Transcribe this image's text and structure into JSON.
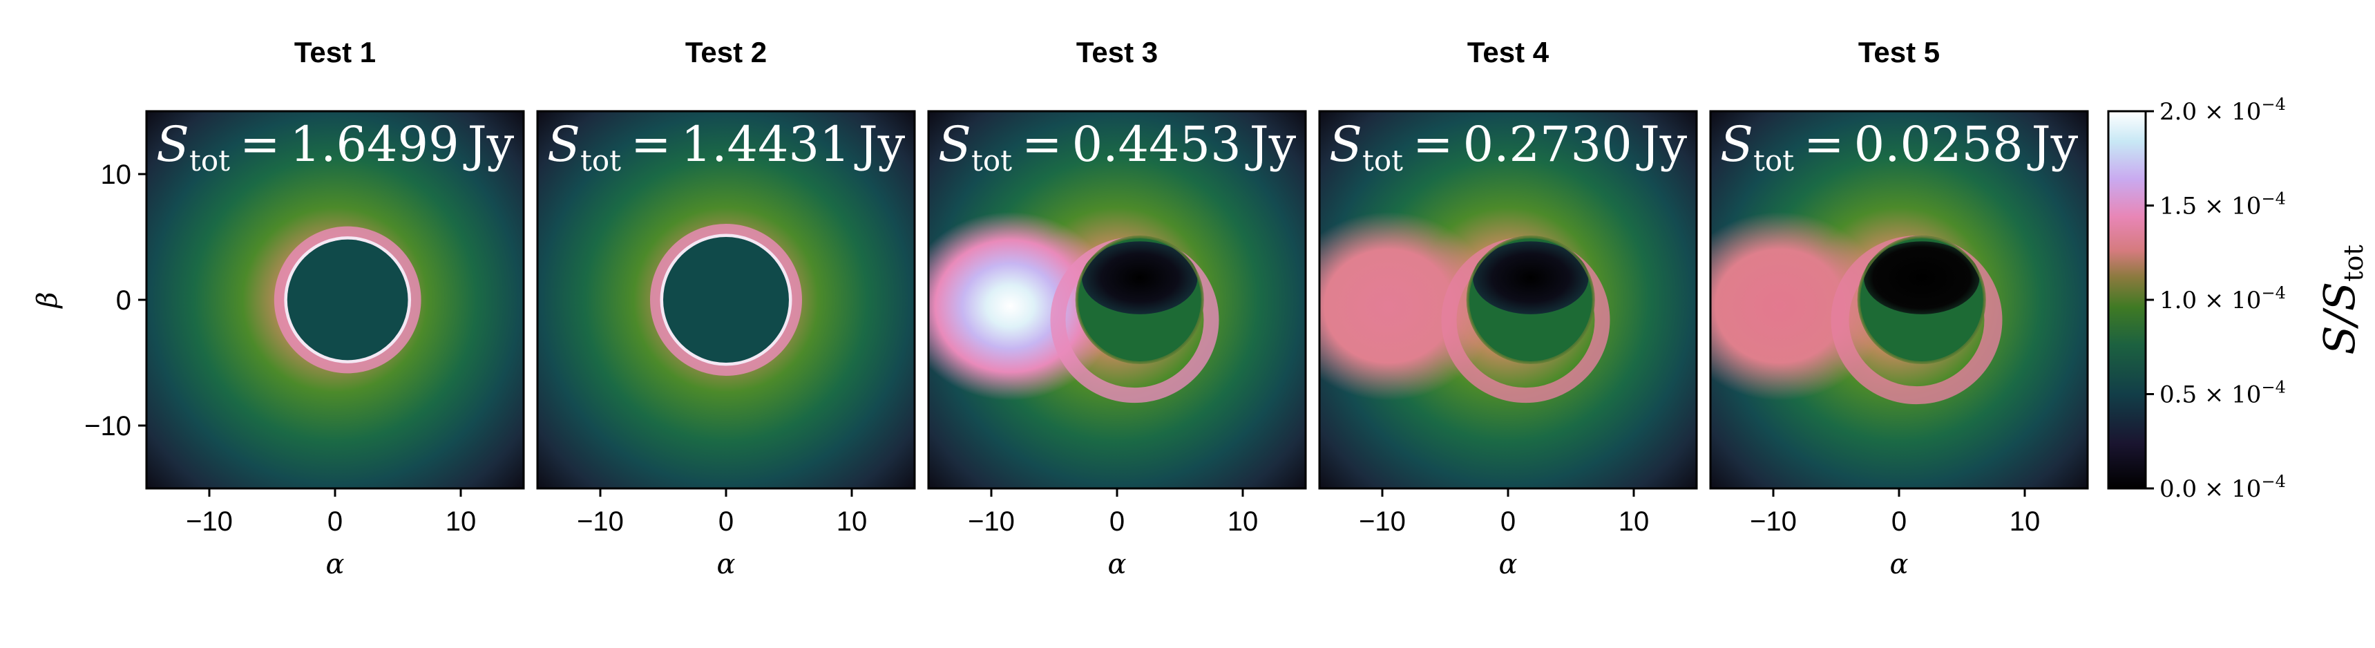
{
  "chart_data": {
    "type": "heatmap",
    "colormap": "cubehelix",
    "x_range": [
      -15,
      15
    ],
    "y_range": [
      -15,
      15
    ],
    "xlabel": "α",
    "ylabel": "β",
    "x_ticks": [
      -10,
      0,
      10
    ],
    "y_ticks": [
      -10,
      0,
      10
    ],
    "x_tick_labels": [
      "−10",
      "0",
      "10"
    ],
    "y_tick_labels": [
      "−10",
      "0",
      "10"
    ],
    "panels": [
      {
        "title": "Test 1",
        "stot_value": "1.6499",
        "stot_unit": "Jy",
        "shadow_center": [
          1.0,
          0.0
        ],
        "shadow_radius": 4.8,
        "style": "symmetric"
      },
      {
        "title": "Test 2",
        "stot_value": "1.4431",
        "stot_unit": "Jy",
        "shadow_center": [
          0.0,
          0.0
        ],
        "shadow_radius": 5.0,
        "style": "symmetric"
      },
      {
        "title": "Test 3",
        "stot_value": "0.4453",
        "stot_unit": "Jy",
        "shadow_center": [
          1.8,
          0.0
        ],
        "shadow_radius": 5.0,
        "style": "lobe-bright"
      },
      {
        "title": "Test 4",
        "stot_value": "0.2730",
        "stot_unit": "Jy",
        "shadow_center": [
          1.8,
          0.0
        ],
        "shadow_radius": 5.0,
        "style": "lobe-medium"
      },
      {
        "title": "Test 5",
        "stot_value": "0.0258",
        "stot_unit": "Jy",
        "shadow_center": [
          1.8,
          0.0
        ],
        "shadow_radius": 5.0,
        "style": "lobe-dim"
      }
    ],
    "colorbar": {
      "label": "S/S",
      "label_sub": "tot",
      "range": [
        0.0,
        2.0
      ],
      "ticks": [
        0.0,
        0.5,
        1.0,
        1.5,
        2.0
      ],
      "tick_labels": [
        "0.0",
        "0.5",
        "1.0",
        "1.5",
        "2.0"
      ],
      "multiplier": "× 10",
      "exponent": "−4"
    },
    "stot_symbol": "S",
    "stot_sub": "tot",
    "equals": "="
  }
}
